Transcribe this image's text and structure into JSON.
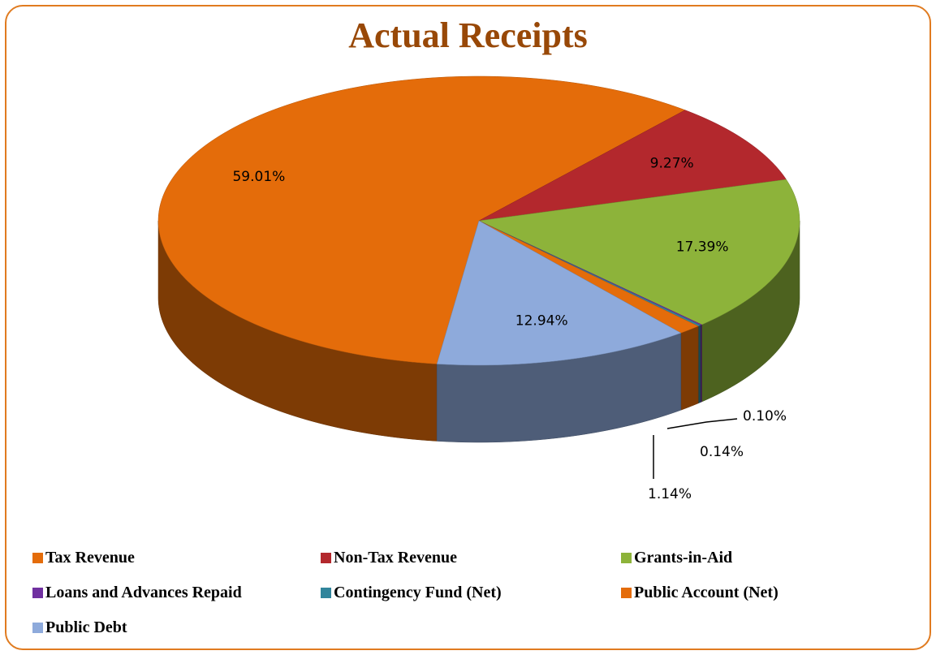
{
  "chart_data": {
    "type": "pie",
    "title": "Actual Receipts",
    "categories": [
      "Tax Revenue",
      "Non-Tax Revenue",
      "Grants-in-Aid",
      "Loans and Advances Repaid",
      "Contingency Fund (Net)",
      "Public Account (Net)",
      "Public Debt"
    ],
    "values": [
      59.01,
      9.27,
      17.39,
      0.1,
      0.14,
      1.14,
      12.94
    ],
    "value_labels": [
      "59.01%",
      "9.27%",
      "17.39%",
      "0.10%",
      "0.14%",
      "1.14%",
      "12.94%"
    ],
    "colors": [
      "#e46c0a",
      "#b3282d",
      "#8db33a",
      "#7030a0",
      "#31859c",
      "#e46c0a",
      "#8eaadb"
    ],
    "legend": "bottom"
  }
}
